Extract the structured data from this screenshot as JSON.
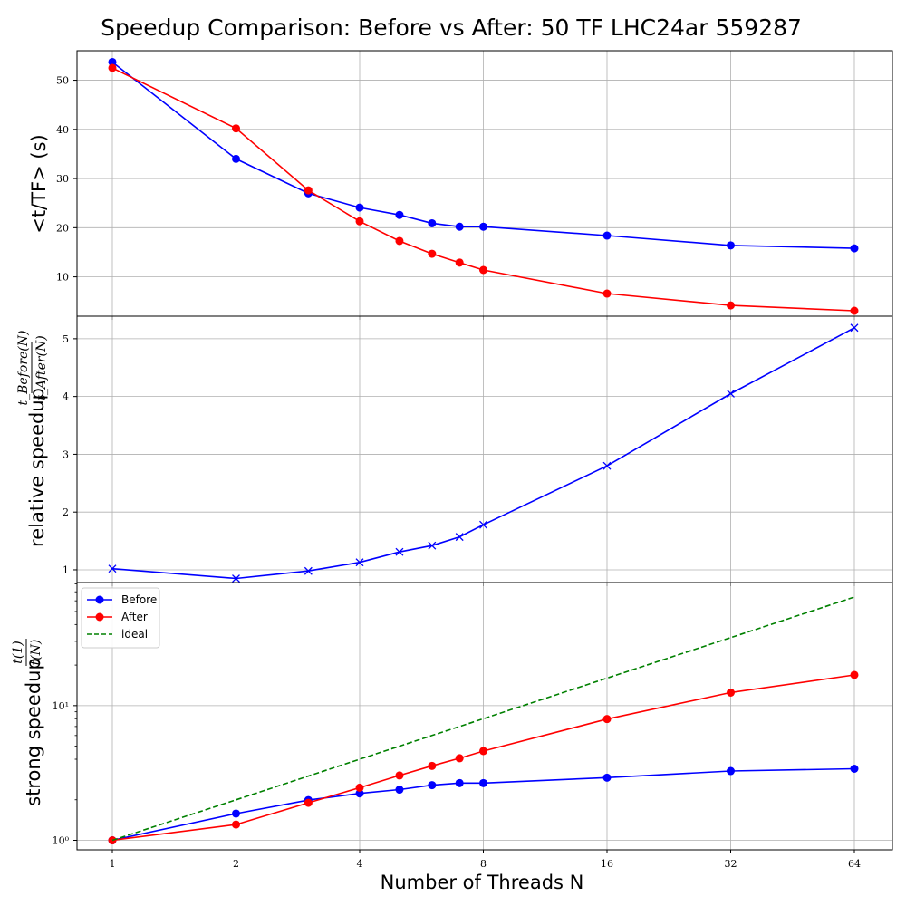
{
  "figure": {
    "title": "Speedup Comparison: Before vs After: 50 TF LHC24ar 559287",
    "xlabel": "Number of Threads N"
  },
  "colors": {
    "before": "#0000ff",
    "after": "#ff0000",
    "ideal": "#008000",
    "grid": "#b0b0b0"
  },
  "chart_data": [
    {
      "type": "line",
      "panel": "top",
      "ylabel": "<t/TF> (s)",
      "x_scale": "log2",
      "x": [
        1,
        2,
        3,
        4,
        5,
        6,
        7,
        8,
        16,
        32,
        64
      ],
      "x_ticks": [
        1,
        2,
        4,
        8,
        16,
        32,
        64
      ],
      "x_tick_labels": [
        "1",
        "2",
        "4",
        "8",
        "16",
        "32",
        "64"
      ],
      "ylim": [
        2,
        56
      ],
      "y_ticks": [
        10,
        20,
        30,
        40,
        50
      ],
      "y_tick_labels": [
        "10",
        "20",
        "30",
        "40",
        "50"
      ],
      "grid": true,
      "series": [
        {
          "name": "Before",
          "color": "#0000ff",
          "marker": "circle",
          "values": [
            53.7,
            34.0,
            27.0,
            24.1,
            22.6,
            20.9,
            20.2,
            20.2,
            18.4,
            16.4,
            15.8
          ]
        },
        {
          "name": "After",
          "color": "#ff0000",
          "marker": "circle",
          "values": [
            52.5,
            40.2,
            27.6,
            21.3,
            17.3,
            14.7,
            12.9,
            11.4,
            6.6,
            4.2,
            3.1
          ]
        }
      ]
    },
    {
      "type": "line",
      "panel": "middle",
      "ylabel": "relative speedup",
      "ylabel_frac": {
        "num": "t_Before(N)",
        "den": "t_After(N)"
      },
      "x_scale": "log2",
      "x": [
        1,
        2,
        3,
        4,
        5,
        6,
        7,
        8,
        16,
        32,
        64
      ],
      "ylim": [
        0.78,
        5.39
      ],
      "y_ticks": [
        1,
        2,
        3,
        4,
        5
      ],
      "y_tick_labels": [
        "1",
        "2",
        "3",
        "4",
        "5"
      ],
      "grid": true,
      "series": [
        {
          "color": "#0000ff",
          "marker": "x",
          "values": [
            1.02,
            0.85,
            0.98,
            1.13,
            1.31,
            1.42,
            1.57,
            1.78,
            2.8,
            4.05,
            5.19
          ]
        }
      ]
    },
    {
      "type": "line",
      "panel": "bottom",
      "ylabel": "strong speedup",
      "ylabel_frac": {
        "num": "t(1)",
        "den": "t(N)"
      },
      "x_scale": "log2",
      "y_scale": "log",
      "x": [
        1,
        2,
        3,
        4,
        5,
        6,
        7,
        8,
        16,
        32,
        64
      ],
      "ylim": [
        0.85,
        82
      ],
      "y_ticks": [
        1,
        10
      ],
      "y_tick_labels": [
        "10⁰",
        "10¹"
      ],
      "grid": true,
      "legend_position": "top-left",
      "series": [
        {
          "name": "Before",
          "color": "#0000ff",
          "marker": "circle",
          "linestyle": "solid",
          "values": [
            1.0,
            1.58,
            1.99,
            2.23,
            2.38,
            2.57,
            2.66,
            2.66,
            2.92,
            3.27,
            3.4
          ]
        },
        {
          "name": "After",
          "color": "#ff0000",
          "marker": "circle",
          "linestyle": "solid",
          "values": [
            1.0,
            1.31,
            1.9,
            2.46,
            3.03,
            3.57,
            4.07,
            4.6,
            7.95,
            12.5,
            16.9
          ]
        },
        {
          "name": "ideal",
          "color": "#008000",
          "marker": "none",
          "linestyle": "dashed",
          "values": [
            1,
            2,
            3,
            4,
            5,
            6,
            7,
            8,
            16,
            32,
            64
          ]
        }
      ]
    }
  ]
}
